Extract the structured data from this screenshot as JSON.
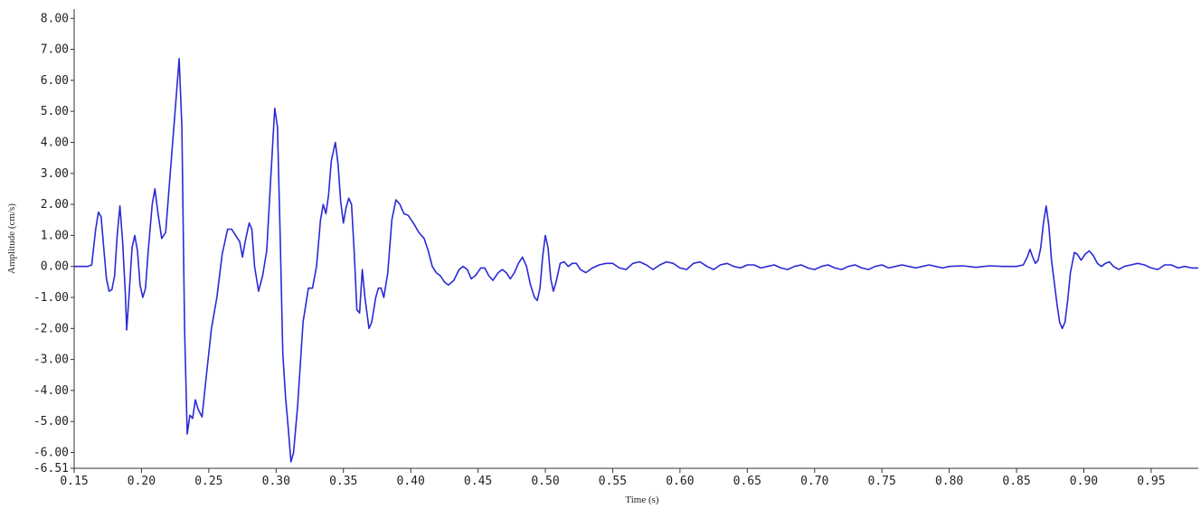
{
  "chart_data": {
    "type": "line",
    "title": "",
    "xlabel": "Time (s)",
    "ylabel": "Amplitude (cm/s)",
    "xlim": [
      0.15,
      0.985
    ],
    "ylim": [
      -6.51,
      8.3
    ],
    "grid": false,
    "x_ticks": [
      0.15,
      0.2,
      0.25,
      0.3,
      0.35,
      0.4,
      0.45,
      0.5,
      0.55,
      0.6,
      0.65,
      0.7,
      0.75,
      0.8,
      0.85,
      0.9,
      0.95
    ],
    "x_tick_labels": [
      "0.15",
      "0.20",
      "0.25",
      "0.30",
      "0.35",
      "0.40",
      "0.45",
      "0.50",
      "0.55",
      "0.60",
      "0.65",
      "0.70",
      "0.75",
      "0.80",
      "0.85",
      "0.90",
      "0.95"
    ],
    "y_ticks": [
      8,
      7,
      6,
      5,
      4,
      3,
      2,
      1,
      0,
      -1,
      -2,
      -3,
      -4,
      -5,
      -6,
      -6.51
    ],
    "y_tick_labels": [
      "8.00",
      "7.00",
      "6.00",
      "5.00",
      "4.00",
      "3.00",
      "2.00",
      "1.00",
      "0.00",
      "-1.00",
      "-2.00",
      "-3.00",
      "-4.00",
      "-5.00",
      "-6.00",
      "-6.51"
    ],
    "series": [
      {
        "color": "#2a2ad6",
        "points": [
          [
            0.15,
            0.0
          ],
          [
            0.16,
            0.0
          ],
          [
            0.163,
            0.05
          ],
          [
            0.166,
            1.2
          ],
          [
            0.168,
            1.75
          ],
          [
            0.17,
            1.6
          ],
          [
            0.172,
            0.6
          ],
          [
            0.174,
            -0.4
          ],
          [
            0.176,
            -0.8
          ],
          [
            0.178,
            -0.75
          ],
          [
            0.18,
            -0.3
          ],
          [
            0.182,
            1.0
          ],
          [
            0.184,
            1.95
          ],
          [
            0.186,
            0.8
          ],
          [
            0.188,
            -0.9
          ],
          [
            0.189,
            -2.05
          ],
          [
            0.191,
            -0.8
          ],
          [
            0.193,
            0.6
          ],
          [
            0.195,
            1.0
          ],
          [
            0.197,
            0.5
          ],
          [
            0.199,
            -0.6
          ],
          [
            0.201,
            -1.0
          ],
          [
            0.203,
            -0.7
          ],
          [
            0.205,
            0.5
          ],
          [
            0.208,
            2.0
          ],
          [
            0.21,
            2.5
          ],
          [
            0.212,
            1.8
          ],
          [
            0.215,
            0.9
          ],
          [
            0.218,
            1.1
          ],
          [
            0.221,
            2.8
          ],
          [
            0.225,
            5.0
          ],
          [
            0.228,
            6.7
          ],
          [
            0.23,
            4.5
          ],
          [
            0.232,
            -2.0
          ],
          [
            0.234,
            -5.4
          ],
          [
            0.236,
            -4.8
          ],
          [
            0.238,
            -4.9
          ],
          [
            0.24,
            -4.3
          ],
          [
            0.242,
            -4.6
          ],
          [
            0.245,
            -4.85
          ],
          [
            0.248,
            -3.6
          ],
          [
            0.252,
            -2.0
          ],
          [
            0.256,
            -1.0
          ],
          [
            0.26,
            0.4
          ],
          [
            0.264,
            1.2
          ],
          [
            0.267,
            1.2
          ],
          [
            0.27,
            1.0
          ],
          [
            0.273,
            0.8
          ],
          [
            0.275,
            0.3
          ],
          [
            0.277,
            0.8
          ],
          [
            0.28,
            1.4
          ],
          [
            0.282,
            1.2
          ],
          [
            0.284,
            0.0
          ],
          [
            0.287,
            -0.8
          ],
          [
            0.29,
            -0.3
          ],
          [
            0.293,
            0.5
          ],
          [
            0.296,
            2.8
          ],
          [
            0.299,
            5.1
          ],
          [
            0.301,
            4.5
          ],
          [
            0.303,
            1.0
          ],
          [
            0.305,
            -2.8
          ],
          [
            0.307,
            -4.2
          ],
          [
            0.309,
            -5.2
          ],
          [
            0.311,
            -6.3
          ],
          [
            0.313,
            -6.0
          ],
          [
            0.316,
            -4.5
          ],
          [
            0.32,
            -1.8
          ],
          [
            0.324,
            -0.7
          ],
          [
            0.327,
            -0.7
          ],
          [
            0.33,
            0.0
          ],
          [
            0.333,
            1.5
          ],
          [
            0.335,
            2.0
          ],
          [
            0.337,
            1.7
          ],
          [
            0.339,
            2.3
          ],
          [
            0.341,
            3.4
          ],
          [
            0.344,
            4.0
          ],
          [
            0.346,
            3.3
          ],
          [
            0.348,
            2.1
          ],
          [
            0.35,
            1.4
          ],
          [
            0.352,
            1.9
          ],
          [
            0.354,
            2.2
          ],
          [
            0.356,
            2.0
          ],
          [
            0.358,
            0.5
          ],
          [
            0.36,
            -1.4
          ],
          [
            0.362,
            -1.5
          ],
          [
            0.364,
            -0.1
          ],
          [
            0.366,
            -1.0
          ],
          [
            0.369,
            -2.0
          ],
          [
            0.371,
            -1.8
          ],
          [
            0.374,
            -1.0
          ],
          [
            0.376,
            -0.7
          ],
          [
            0.378,
            -0.7
          ],
          [
            0.38,
            -1.0
          ],
          [
            0.383,
            -0.2
          ],
          [
            0.386,
            1.5
          ],
          [
            0.389,
            2.15
          ],
          [
            0.392,
            2.0
          ],
          [
            0.395,
            1.7
          ],
          [
            0.398,
            1.65
          ],
          [
            0.402,
            1.4
          ],
          [
            0.406,
            1.1
          ],
          [
            0.41,
            0.9
          ],
          [
            0.413,
            0.5
          ],
          [
            0.416,
            0.0
          ],
          [
            0.419,
            -0.2
          ],
          [
            0.422,
            -0.3
          ],
          [
            0.425,
            -0.5
          ],
          [
            0.428,
            -0.6
          ],
          [
            0.432,
            -0.45
          ],
          [
            0.436,
            -0.1
          ],
          [
            0.439,
            0.0
          ],
          [
            0.442,
            -0.1
          ],
          [
            0.445,
            -0.4
          ],
          [
            0.448,
            -0.3
          ],
          [
            0.452,
            -0.05
          ],
          [
            0.455,
            -0.05
          ],
          [
            0.458,
            -0.3
          ],
          [
            0.461,
            -0.45
          ],
          [
            0.465,
            -0.2
          ],
          [
            0.468,
            -0.1
          ],
          [
            0.471,
            -0.2
          ],
          [
            0.474,
            -0.4
          ],
          [
            0.477,
            -0.2
          ],
          [
            0.48,
            0.1
          ],
          [
            0.483,
            0.3
          ],
          [
            0.486,
            0.0
          ],
          [
            0.489,
            -0.6
          ],
          [
            0.492,
            -1.0
          ],
          [
            0.494,
            -1.1
          ],
          [
            0.496,
            -0.7
          ],
          [
            0.498,
            0.3
          ],
          [
            0.5,
            1.0
          ],
          [
            0.502,
            0.6
          ],
          [
            0.504,
            -0.4
          ],
          [
            0.506,
            -0.8
          ],
          [
            0.508,
            -0.5
          ],
          [
            0.511,
            0.1
          ],
          [
            0.514,
            0.15
          ],
          [
            0.517,
            0.0
          ],
          [
            0.52,
            0.1
          ],
          [
            0.523,
            0.1
          ],
          [
            0.526,
            -0.1
          ],
          [
            0.53,
            -0.2
          ],
          [
            0.535,
            -0.05
          ],
          [
            0.54,
            0.05
          ],
          [
            0.545,
            0.1
          ],
          [
            0.55,
            0.1
          ],
          [
            0.555,
            -0.05
          ],
          [
            0.56,
            -0.1
          ],
          [
            0.565,
            0.1
          ],
          [
            0.57,
            0.15
          ],
          [
            0.575,
            0.05
          ],
          [
            0.58,
            -0.1
          ],
          [
            0.585,
            0.05
          ],
          [
            0.59,
            0.15
          ],
          [
            0.595,
            0.1
          ],
          [
            0.6,
            -0.05
          ],
          [
            0.605,
            -0.1
          ],
          [
            0.61,
            0.1
          ],
          [
            0.615,
            0.15
          ],
          [
            0.62,
            0.0
          ],
          [
            0.625,
            -0.1
          ],
          [
            0.63,
            0.05
          ],
          [
            0.635,
            0.1
          ],
          [
            0.64,
            0.0
          ],
          [
            0.645,
            -0.05
          ],
          [
            0.65,
            0.05
          ],
          [
            0.655,
            0.05
          ],
          [
            0.66,
            -0.05
          ],
          [
            0.665,
            0.0
          ],
          [
            0.67,
            0.05
          ],
          [
            0.675,
            -0.05
          ],
          [
            0.68,
            -0.1
          ],
          [
            0.685,
            0.0
          ],
          [
            0.69,
            0.05
          ],
          [
            0.695,
            -0.05
          ],
          [
            0.7,
            -0.1
          ],
          [
            0.705,
            0.0
          ],
          [
            0.71,
            0.05
          ],
          [
            0.715,
            -0.05
          ],
          [
            0.72,
            -0.1
          ],
          [
            0.725,
            0.0
          ],
          [
            0.73,
            0.05
          ],
          [
            0.735,
            -0.05
          ],
          [
            0.74,
            -0.1
          ],
          [
            0.745,
            0.0
          ],
          [
            0.75,
            0.05
          ],
          [
            0.755,
            -0.05
          ],
          [
            0.76,
            0.0
          ],
          [
            0.765,
            0.05
          ],
          [
            0.77,
            0.0
          ],
          [
            0.775,
            -0.05
          ],
          [
            0.78,
            0.0
          ],
          [
            0.785,
            0.05
          ],
          [
            0.79,
            0.0
          ],
          [
            0.795,
            -0.05
          ],
          [
            0.8,
            0.0
          ],
          [
            0.81,
            0.02
          ],
          [
            0.82,
            -0.03
          ],
          [
            0.83,
            0.02
          ],
          [
            0.84,
            0.0
          ],
          [
            0.85,
            0.0
          ],
          [
            0.855,
            0.05
          ],
          [
            0.858,
            0.3
          ],
          [
            0.86,
            0.55
          ],
          [
            0.862,
            0.3
          ],
          [
            0.864,
            0.1
          ],
          [
            0.866,
            0.2
          ],
          [
            0.868,
            0.6
          ],
          [
            0.87,
            1.4
          ],
          [
            0.872,
            1.95
          ],
          [
            0.874,
            1.3
          ],
          [
            0.876,
            0.2
          ],
          [
            0.878,
            -0.5
          ],
          [
            0.88,
            -1.2
          ],
          [
            0.882,
            -1.8
          ],
          [
            0.884,
            -2.0
          ],
          [
            0.886,
            -1.8
          ],
          [
            0.888,
            -1.1
          ],
          [
            0.89,
            -0.2
          ],
          [
            0.893,
            0.45
          ],
          [
            0.895,
            0.4
          ],
          [
            0.898,
            0.2
          ],
          [
            0.901,
            0.4
          ],
          [
            0.904,
            0.5
          ],
          [
            0.907,
            0.35
          ],
          [
            0.91,
            0.1
          ],
          [
            0.913,
            0.0
          ],
          [
            0.916,
            0.1
          ],
          [
            0.919,
            0.15
          ],
          [
            0.922,
            0.0
          ],
          [
            0.926,
            -0.1
          ],
          [
            0.93,
            0.0
          ],
          [
            0.935,
            0.05
          ],
          [
            0.94,
            0.1
          ],
          [
            0.945,
            0.05
          ],
          [
            0.95,
            -0.05
          ],
          [
            0.955,
            -0.1
          ],
          [
            0.96,
            0.05
          ],
          [
            0.965,
            0.05
          ],
          [
            0.97,
            -0.05
          ],
          [
            0.975,
            0.0
          ],
          [
            0.98,
            -0.05
          ],
          [
            0.985,
            -0.05
          ]
        ]
      }
    ]
  }
}
